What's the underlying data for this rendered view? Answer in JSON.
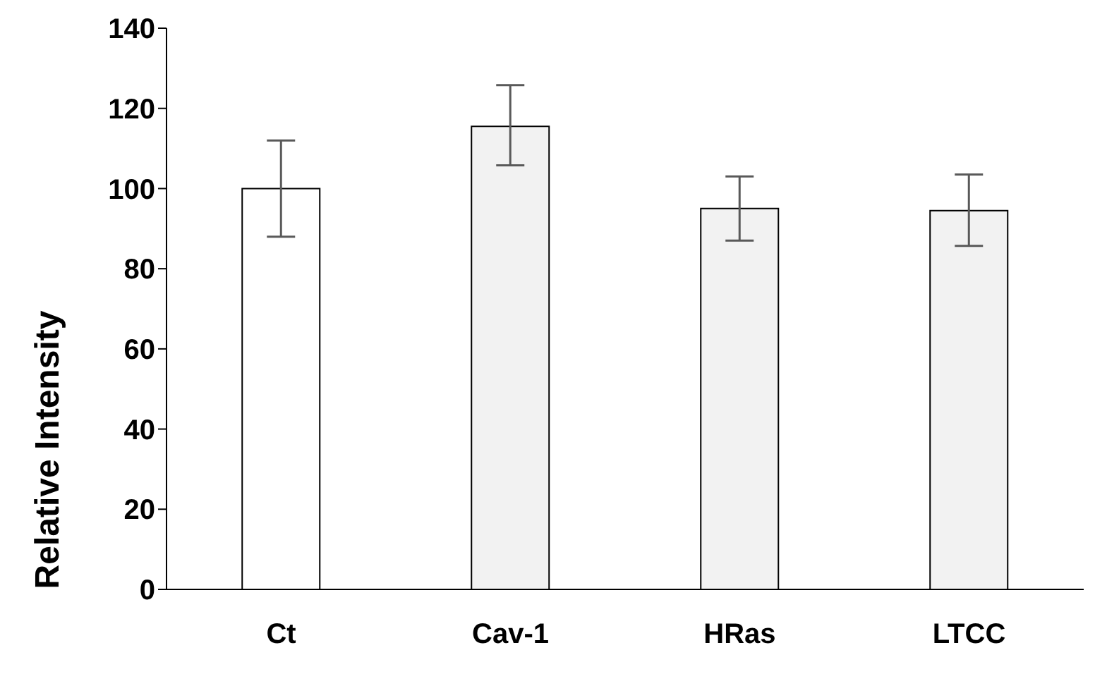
{
  "chart_data": {
    "type": "bar",
    "ylabel": "Relative Intensity",
    "categories": [
      "Ct",
      "Cav-1",
      "HRas",
      "LTCC"
    ],
    "values": [
      100,
      115.5,
      95,
      94.5
    ],
    "colors": [
      "#ffffff",
      "#f2f2f2",
      "#f2f2f2",
      "#f2f2f2"
    ],
    "errors": [
      [
        88,
        112
      ],
      [
        105.8,
        125.8
      ],
      [
        87,
        103
      ],
      [
        85.7,
        103.5
      ]
    ],
    "ylim": [
      0,
      140
    ],
    "yticks": [
      0,
      20,
      40,
      60,
      80,
      100,
      120,
      140
    ],
    "grid": false,
    "legend": false
  }
}
